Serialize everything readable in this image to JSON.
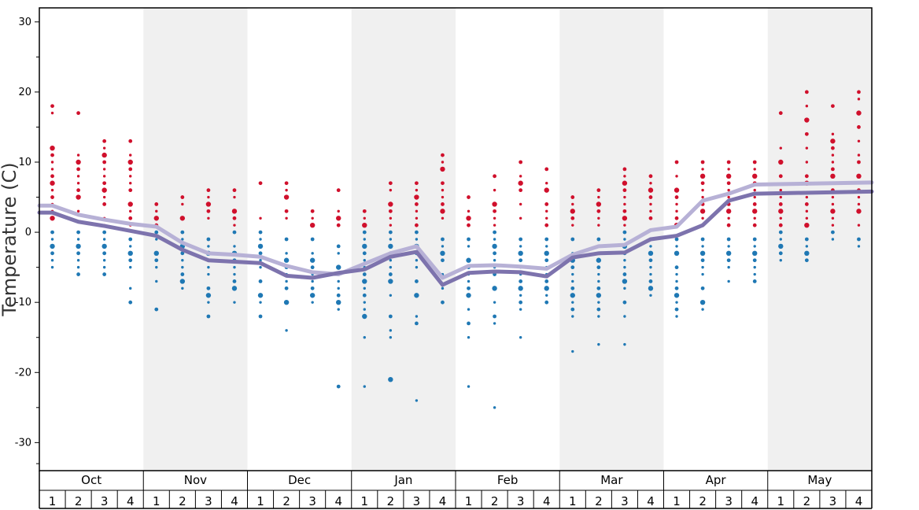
{
  "chart_data": {
    "type": "scatter",
    "ylabel": "Temperature (C)",
    "ylim": [
      -34,
      32
    ],
    "yticks": [
      30,
      20,
      10,
      0,
      -10,
      -20,
      -30
    ],
    "yticks_minor": [
      25,
      15,
      5,
      -5,
      -15,
      -25,
      -33
    ],
    "months": [
      "Oct",
      "Nov",
      "Dec",
      "Jan",
      "Feb",
      "Mar",
      "Apr",
      "May"
    ],
    "weeks": [
      "1",
      "2",
      "3",
      "4"
    ],
    "colors": {
      "warm_dot": "#d0102c",
      "cold_dot": "#1f78b4",
      "line_light": "#b7b1d6",
      "line_dark": "#7d73ad",
      "shade": "#f0f0f0",
      "axis": "#000000"
    },
    "series": [
      {
        "name": "light line",
        "values": [
          3.8,
          2.5,
          1.8,
          1.2,
          0.8,
          -1.5,
          -3.0,
          -3.2,
          -3.5,
          -4.8,
          -5.7,
          -6.0,
          -4.5,
          -3.0,
          -2.0,
          -6.5,
          -4.8,
          -4.7,
          -4.9,
          -5.2,
          -3.2,
          -2.0,
          -1.8,
          0.3,
          0.8,
          4.5,
          5.5,
          6.8
        ]
      },
      {
        "name": "dark line",
        "values": [
          2.8,
          1.5,
          0.9,
          0.2,
          -0.5,
          -2.5,
          -4.0,
          -4.2,
          -4.4,
          -6.2,
          -6.5,
          -5.8,
          -5.3,
          -3.5,
          -2.8,
          -7.5,
          -5.8,
          -5.6,
          -5.7,
          -6.3,
          -3.6,
          -3.0,
          -2.9,
          -1.0,
          -0.5,
          1.0,
          4.5,
          5.5
        ]
      }
    ],
    "dots": [
      {
        "month": "Oct",
        "week": 1,
        "warm": [
          18,
          17,
          12,
          11,
          10,
          9,
          8,
          7,
          6,
          5,
          4,
          3,
          2
        ],
        "cold": [
          0,
          -1,
          -2,
          -3,
          -4,
          -5
        ]
      },
      {
        "month": "Oct",
        "week": 2,
        "warm": [
          17,
          11,
          10,
          9,
          8,
          7,
          6,
          5,
          3
        ],
        "cold": [
          0,
          -1,
          -2,
          -3,
          -4,
          -5,
          -6
        ]
      },
      {
        "month": "Oct",
        "week": 3,
        "warm": [
          13,
          12,
          11,
          10,
          9,
          8,
          7,
          6,
          5,
          4,
          2,
          1
        ],
        "cold": [
          0,
          -1,
          -2,
          -3,
          -4,
          -5,
          -6
        ]
      },
      {
        "month": "Oct",
        "week": 4,
        "warm": [
          13,
          11,
          10,
          9,
          8,
          7,
          6,
          4,
          3,
          2,
          1
        ],
        "cold": [
          -1,
          -2,
          -3,
          -4,
          -5,
          -8,
          -10
        ]
      },
      {
        "month": "Nov",
        "week": 1,
        "warm": [
          4,
          3,
          2,
          1
        ],
        "cold": [
          0,
          -1,
          -3,
          -4,
          -5,
          -7,
          -11
        ]
      },
      {
        "month": "Nov",
        "week": 2,
        "warm": [
          5,
          4,
          2
        ],
        "cold": [
          0,
          -1,
          -2,
          -3,
          -4,
          -5,
          -6,
          -7,
          -8
        ]
      },
      {
        "month": "Nov",
        "week": 3,
        "warm": [
          6,
          5,
          4,
          3,
          2
        ],
        "cold": [
          -1,
          -2,
          -3,
          -4,
          -5,
          -6,
          -8,
          -9,
          -10,
          -12
        ]
      },
      {
        "month": "Nov",
        "week": 4,
        "warm": [
          6,
          5,
          3,
          2,
          1
        ],
        "cold": [
          0,
          -2,
          -3,
          -4,
          -5,
          -6,
          -7,
          -8,
          -10
        ]
      },
      {
        "month": "Dec",
        "week": 1,
        "warm": [
          7,
          2
        ],
        "cold": [
          0,
          -1,
          -2,
          -3,
          -4,
          -5,
          -7,
          -9,
          -10,
          -12
        ]
      },
      {
        "month": "Dec",
        "week": 2,
        "warm": [
          7,
          6,
          5,
          3,
          2
        ],
        "cold": [
          -1,
          -3,
          -4,
          -5,
          -6,
          -7,
          -8,
          -10,
          -14
        ]
      },
      {
        "month": "Dec",
        "week": 3,
        "warm": [
          3,
          2,
          1
        ],
        "cold": [
          -1,
          -3,
          -4,
          -5,
          -6,
          -7,
          -8,
          -9,
          -10
        ]
      },
      {
        "month": "Dec",
        "week": 4,
        "warm": [
          6,
          3,
          2,
          1
        ],
        "cold": [
          -2,
          -3,
          -5,
          -6,
          -7,
          -8,
          -9,
          -10,
          -11,
          -22
        ]
      },
      {
        "month": "Jan",
        "week": 1,
        "warm": [
          3,
          2,
          1
        ],
        "cold": [
          0,
          -1,
          -2,
          -3,
          -4,
          -5,
          -6,
          -7,
          -8,
          -9,
          -10,
          -11,
          -12,
          -15,
          -22
        ]
      },
      {
        "month": "Jan",
        "week": 2,
        "warm": [
          7,
          6,
          4,
          3,
          2,
          1
        ],
        "cold": [
          0,
          -1,
          -2,
          -3,
          -4,
          -5,
          -6,
          -7,
          -9,
          -12,
          -14,
          -15,
          -21
        ]
      },
      {
        "month": "Jan",
        "week": 3,
        "warm": [
          7,
          6,
          5,
          4,
          3,
          2,
          1
        ],
        "cold": [
          0,
          -1,
          -2,
          -3,
          -4,
          -5,
          -7,
          -9,
          -12,
          -13,
          -24
        ]
      },
      {
        "month": "Jan",
        "week": 4,
        "warm": [
          11,
          10,
          9,
          7,
          6,
          5,
          4,
          3,
          2
        ],
        "cold": [
          -1,
          -2,
          -3,
          -4,
          -6,
          -8,
          -10
        ]
      },
      {
        "month": "Feb",
        "week": 1,
        "warm": [
          5,
          3,
          2,
          1
        ],
        "cold": [
          -1,
          -2,
          -4,
          -5,
          -6,
          -7,
          -8,
          -9,
          -11,
          -13,
          -15,
          -22
        ]
      },
      {
        "month": "Feb",
        "week": 2,
        "warm": [
          8,
          6,
          4,
          3,
          2,
          1
        ],
        "cold": [
          0,
          -1,
          -2,
          -3,
          -4,
          -5,
          -6,
          -8,
          -10,
          -12,
          -13,
          -25
        ]
      },
      {
        "month": "Feb",
        "week": 3,
        "warm": [
          10,
          8,
          7,
          6,
          4,
          2
        ],
        "cold": [
          -1,
          -2,
          -3,
          -4,
          -5,
          -6,
          -7,
          -8,
          -9,
          -10,
          -11,
          -15
        ]
      },
      {
        "month": "Feb",
        "week": 4,
        "warm": [
          9,
          7,
          6,
          4,
          3,
          2,
          1
        ],
        "cold": [
          -1,
          -2,
          -3,
          -4,
          -5,
          -6,
          -7,
          -8,
          -9,
          -10
        ]
      },
      {
        "month": "Mar",
        "week": 1,
        "warm": [
          5,
          4,
          3,
          2,
          1
        ],
        "cold": [
          -1,
          -3,
          -4,
          -5,
          -6,
          -7,
          -8,
          -9,
          -10,
          -11,
          -12,
          -17
        ]
      },
      {
        "month": "Mar",
        "week": 2,
        "warm": [
          6,
          5,
          4,
          3,
          2,
          1
        ],
        "cold": [
          -1,
          -3,
          -4,
          -5,
          -6,
          -7,
          -8,
          -9,
          -10,
          -11,
          -12,
          -16
        ]
      },
      {
        "month": "Mar",
        "week": 3,
        "warm": [
          9,
          8,
          7,
          6,
          5,
          4,
          3,
          2,
          1
        ],
        "cold": [
          0,
          -1,
          -2,
          -3,
          -4,
          -5,
          -6,
          -7,
          -8,
          -10,
          -12,
          -16
        ]
      },
      {
        "month": "Mar",
        "week": 4,
        "warm": [
          8,
          7,
          6,
          5,
          4,
          3,
          2
        ],
        "cold": [
          -1,
          -2,
          -3,
          -4,
          -5,
          -6,
          -7,
          -8,
          -9
        ]
      },
      {
        "month": "Apr",
        "week": 1,
        "warm": [
          10,
          8,
          6,
          5,
          4,
          3,
          2,
          1
        ],
        "cold": [
          -1,
          -2,
          -3,
          -5,
          -6,
          -7,
          -8,
          -9,
          -10,
          -11,
          -12
        ]
      },
      {
        "month": "Apr",
        "week": 2,
        "warm": [
          10,
          9,
          8,
          7,
          6,
          5,
          4,
          3,
          2,
          1
        ],
        "cold": [
          -1,
          -2,
          -3,
          -4,
          -5,
          -6,
          -8,
          -10,
          -11
        ]
      },
      {
        "month": "Apr",
        "week": 3,
        "warm": [
          10,
          9,
          8,
          7,
          6,
          5,
          4,
          3,
          2,
          1
        ],
        "cold": [
          -1,
          -2,
          -3,
          -4,
          -5,
          -7
        ]
      },
      {
        "month": "Apr",
        "week": 4,
        "warm": [
          10,
          9,
          8,
          7,
          6,
          5,
          4,
          3,
          2,
          1
        ],
        "cold": [
          -1,
          -2,
          -3,
          -4,
          -5,
          -6,
          -7
        ]
      },
      {
        "month": "May",
        "week": 1,
        "warm": [
          17,
          12,
          10,
          8,
          6,
          5,
          4,
          3,
          2,
          1
        ],
        "cold": [
          0,
          -1,
          -2,
          -3,
          -4
        ]
      },
      {
        "month": "May",
        "week": 2,
        "warm": [
          20,
          18,
          16,
          14,
          12,
          10,
          8,
          7,
          5,
          4,
          3,
          2,
          1
        ],
        "cold": [
          -1,
          -2,
          -3,
          -4
        ]
      },
      {
        "month": "May",
        "week": 3,
        "warm": [
          18,
          14,
          13,
          12,
          11,
          10,
          9,
          8,
          7,
          6,
          5,
          4,
          3,
          2,
          1
        ],
        "cold": [
          0,
          -1
        ]
      },
      {
        "month": "May",
        "week": 4,
        "warm": [
          20,
          19,
          17,
          15,
          13,
          11,
          10,
          8,
          7,
          6,
          5,
          4,
          3,
          1
        ],
        "cold": [
          -1,
          -2
        ]
      }
    ]
  }
}
